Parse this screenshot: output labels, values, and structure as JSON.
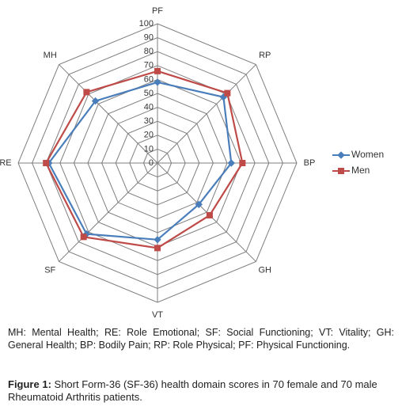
{
  "chart_data": {
    "type": "radar",
    "categories": [
      "PF",
      "RP",
      "BP",
      "GH",
      "VT",
      "SF",
      "RE",
      "MH"
    ],
    "ylim": [
      0,
      100
    ],
    "yticks": [
      0,
      10,
      20,
      30,
      40,
      50,
      60,
      70,
      80,
      90,
      100
    ],
    "grid": true,
    "legend": "right",
    "series": [
      {
        "name": "Women",
        "color": "#4a7ebb",
        "marker": "diamond",
        "values": [
          58,
          67,
          53,
          42,
          55,
          72,
          78,
          63
        ]
      },
      {
        "name": "Men",
        "color": "#be4b48",
        "marker": "square",
        "values": [
          66,
          71,
          61,
          53,
          61,
          75,
          80,
          72
        ]
      }
    ]
  },
  "note": "MH: Mental Health; RE: Role Emotional; SF: Social Functioning; VT: Vitality; GH: General Health; BP: Bodily Pain; RP: Role Physical; PF: Physical Functioning.",
  "caption": {
    "label": "Figure 1:",
    "text": "Short Form-36 (SF-36) health domain scores in 70 female and 70 male Rheumatoid Arthritis patients."
  }
}
